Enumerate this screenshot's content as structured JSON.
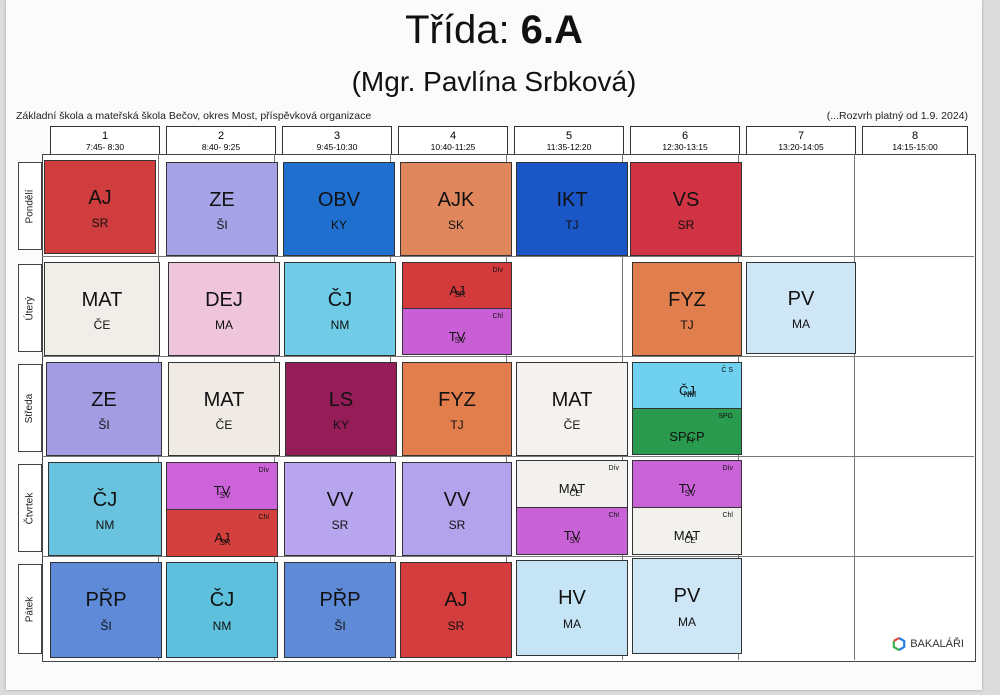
{
  "header": {
    "title_prefix": "Třída: ",
    "class_name": "6.A",
    "teacher": "(Mgr. Pavlína Srbková)",
    "school": "Základní škola a mateřská škola Bečov, okres Most, příspěvková organizace",
    "valid_from": "(...Rozvrh platný od 1.9. 2024)"
  },
  "periods": [
    {
      "num": "1",
      "time": "7:45- 8:30"
    },
    {
      "num": "2",
      "time": "8:40- 9:25"
    },
    {
      "num": "3",
      "time": "9:45-10:30"
    },
    {
      "num": "4",
      "time": "10:40-11:25"
    },
    {
      "num": "5",
      "time": "11:35-12:20"
    },
    {
      "num": "6",
      "time": "12:30-13:15"
    },
    {
      "num": "7",
      "time": "13:20-14:05"
    },
    {
      "num": "8",
      "time": "14:15-15:00"
    }
  ],
  "days": [
    "Pondělí",
    "Úterý",
    "Středa",
    "Čtvrtek",
    "Pátek"
  ],
  "lessons": {
    "mon": [
      {
        "subject": "AJ",
        "teacher": "SR",
        "color": "#cf3d3f"
      },
      {
        "subject": "ZE",
        "teacher": "ŠI",
        "color": "#a6a3e6"
      },
      {
        "subject": "OBV",
        "teacher": "KY",
        "color": "#1f6fcf"
      },
      {
        "subject": "AJK",
        "teacher": "SK",
        "color": "#e0875e"
      },
      {
        "subject": "IKT",
        "teacher": "TJ",
        "color": "#1a56c6"
      },
      {
        "subject": "VS",
        "teacher": "SR",
        "color": "#cf3344"
      }
    ],
    "tue": [
      {
        "subject": "MAT",
        "teacher": "ČE",
        "color": "#f1ede9"
      },
      {
        "subject": "DEJ",
        "teacher": "MA",
        "color": "#efc5dc"
      },
      {
        "subject": "ČJ",
        "teacher": "NM",
        "color": "#6fcbe6"
      },
      {
        "top": {
          "subject": "AJ",
          "group": "Dív",
          "teacher": "SR",
          "color": "#d33a3c"
        },
        "bottom": {
          "subject": "TV",
          "group": "Chl",
          "teacher": "SV",
          "color": "#c95fd6"
        }
      },
      {
        "subject": "FYZ",
        "teacher": "TJ",
        "color": "#e07e4e"
      },
      {
        "subject": "PV",
        "teacher": "MA",
        "color": "#cfe6f7"
      }
    ],
    "wed": [
      {
        "subject": "ZE",
        "teacher": "ŠI",
        "color": "#a49ce3"
      },
      {
        "subject": "MAT",
        "teacher": "ČE",
        "color": "#efebe4"
      },
      {
        "subject": "LS",
        "teacher": "KY",
        "color": "#941c57"
      },
      {
        "subject": "FYZ",
        "teacher": "TJ",
        "color": "#e27d4c"
      },
      {
        "subject": "MAT",
        "teacher": "ČE",
        "color": "#f4f1ee"
      },
      {
        "top": {
          "subject": "ČJ",
          "group": "Č S",
          "teacher": "NM",
          "color": "#6fd1ef"
        },
        "bottom": {
          "subject": "SPCP",
          "group": "SPG",
          "teacher": "FI",
          "color": "#2a9a4f"
        }
      }
    ],
    "thu": [
      {
        "subject": "ČJ",
        "teacher": "NM",
        "color": "#69c3de"
      },
      {
        "top": {
          "subject": "TV",
          "group": "Dív",
          "teacher": "SV",
          "color": "#cc63d8"
        },
        "bottom": {
          "subject": "AJ",
          "group": "Chl",
          "teacher": "SR",
          "color": "#d4403d"
        }
      },
      {
        "subject": "VV",
        "teacher": "SR",
        "color": "#b7a6ee"
      },
      {
        "subject": "VV",
        "teacher": "SR",
        "color": "#b3a3ec"
      },
      {
        "top": {
          "subject": "MAT",
          "group": "Dív",
          "teacher": "ČE",
          "color": "#f3f1ee"
        },
        "bottom": {
          "subject": "TV",
          "group": "Chl",
          "teacher": "SV",
          "color": "#c962d7"
        }
      },
      {
        "top": {
          "subject": "TV",
          "group": "Dív",
          "teacher": "SV",
          "color": "#cb63d8"
        },
        "bottom": {
          "subject": "MAT",
          "group": "Chl",
          "teacher": "ČE",
          "color": "#f3f1ee"
        }
      }
    ],
    "fri": [
      {
        "subject": "PŘP",
        "teacher": "ŠI",
        "color": "#5f8ad8"
      },
      {
        "subject": "ČJ",
        "teacher": "NM",
        "color": "#5dc0dc"
      },
      {
        "subject": "PŘP",
        "teacher": "ŠI",
        "color": "#5f8ad8"
      },
      {
        "subject": "AJ",
        "teacher": "SR",
        "color": "#d33d3e"
      },
      {
        "subject": "HV",
        "teacher": "MA",
        "color": "#c5e4f6"
      },
      {
        "subject": "PV",
        "teacher": "MA",
        "color": "#cfe6f7"
      }
    ]
  },
  "logo": {
    "label": "BAKALÁŘI",
    "colors": [
      "#e84a3f",
      "#2a7de1",
      "#37b24d"
    ]
  }
}
